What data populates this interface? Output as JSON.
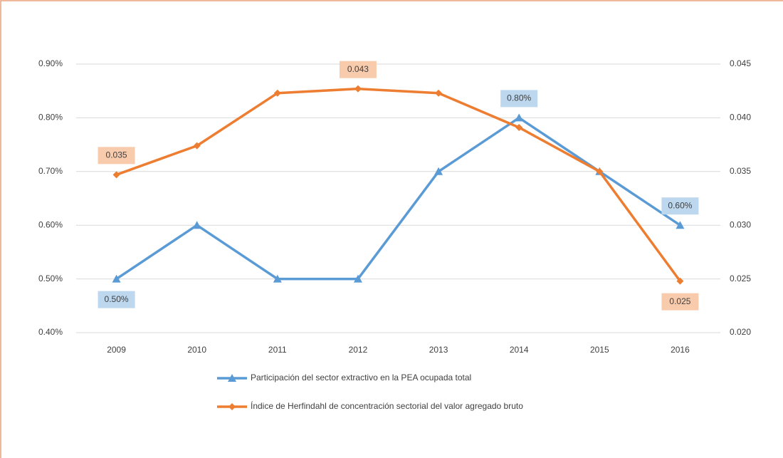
{
  "chart_data": {
    "type": "line",
    "categories": [
      "2009",
      "2010",
      "2011",
      "2012",
      "2013",
      "2014",
      "2015",
      "2016"
    ],
    "series": [
      {
        "name": "Participación del sector extractivo en la PEA ocupada total",
        "color": "#5b9bd5",
        "marker": "triangle",
        "values": [
          0.5,
          0.6,
          0.5,
          0.5,
          0.7,
          0.8,
          0.7,
          0.6
        ],
        "value_labels": [
          "0.50%",
          null,
          null,
          null,
          null,
          "0.80%",
          null,
          "0.60%"
        ],
        "label_color": "#bdd7ee"
      },
      {
        "name": "Índice de Herfindahl de concentración sectorial del valor agregado bruto",
        "color": "#ed7d31",
        "marker": "diamond",
        "axis": "y2",
        "values": [
          0.0347,
          0.0374,
          0.0423,
          0.0427,
          0.0423,
          0.0391,
          0.035,
          0.0248
        ],
        "value_labels": [
          "0.035",
          null,
          null,
          "0.043",
          null,
          null,
          null,
          "0.025"
        ],
        "label_color": "#f8cbad"
      }
    ],
    "ylim": [
      0.4,
      0.9
    ],
    "yticks": [
      {
        "value": 0.4,
        "label": "0.40%"
      },
      {
        "value": 0.5,
        "label": "0.50%"
      },
      {
        "value": 0.6,
        "label": "0.60%"
      },
      {
        "value": 0.7,
        "label": "0.70%"
      },
      {
        "value": 0.8,
        "label": "0.80%"
      },
      {
        "value": 0.9,
        "label": "0.90%"
      }
    ],
    "y2lim": [
      0.02,
      0.045
    ],
    "y2ticks": [
      {
        "value": 0.02,
        "label": "0.020"
      },
      0.025,
      {
        "value": 0.03,
        "label": "0.030"
      },
      0.035,
      {
        "value": 0.04,
        "label": "0.040"
      },
      0.045
    ],
    "grid": true,
    "legend": "bottom"
  }
}
